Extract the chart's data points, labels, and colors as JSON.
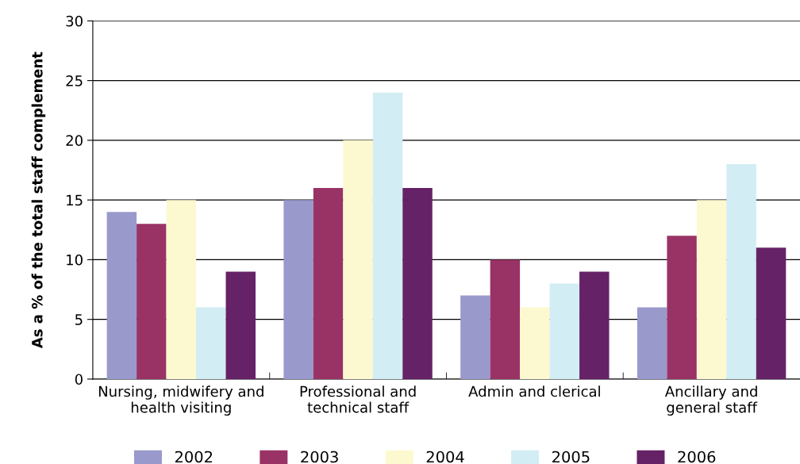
{
  "chart_data": {
    "type": "bar",
    "ylabel": "As a % of the total staff complement",
    "categories": [
      "Nursing, midwifery and\nhealth visiting",
      "Professional and\ntechnical staff",
      "Admin and clerical",
      "Ancillary and\ngeneral staff"
    ],
    "series": [
      {
        "name": "2002",
        "color": "#9999cc",
        "values": [
          14,
          15,
          7,
          6
        ]
      },
      {
        "name": "2003",
        "color": "#993366",
        "values": [
          13,
          16,
          10,
          12
        ]
      },
      {
        "name": "2004",
        "color": "#fcf9d0",
        "values": [
          15,
          20,
          6,
          15
        ]
      },
      {
        "name": "2005",
        "color": "#d2edf3",
        "values": [
          6,
          24,
          8,
          18
        ]
      },
      {
        "name": "2006",
        "color": "#662266",
        "values": [
          9,
          16,
          9,
          11
        ]
      }
    ],
    "ylim": [
      0,
      30
    ],
    "yticks": [
      0,
      5,
      10,
      15,
      20,
      25,
      30
    ],
    "grid": "y",
    "legend": "bottom"
  }
}
